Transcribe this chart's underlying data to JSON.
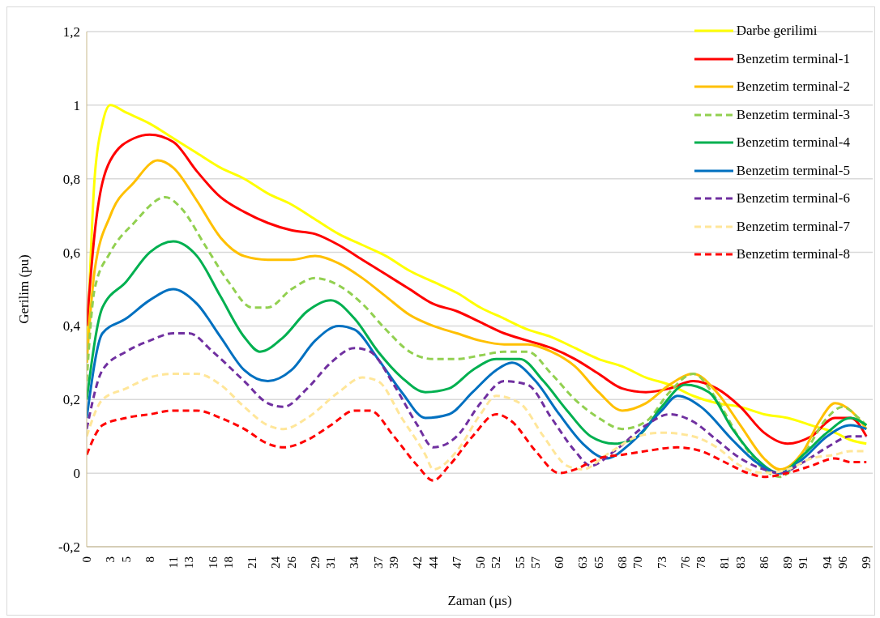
{
  "chart_data": {
    "type": "line",
    "xlabel": "Zaman (µs)",
    "ylabel": "Gerilim (pu)",
    "legend": "top right",
    "grid": "y",
    "xlim": [
      0,
      99.8
    ],
    "ylim": [
      -0.2,
      1.2
    ],
    "yticks": [
      {
        "value": -0.2,
        "label": "-0,2"
      },
      {
        "value": 0,
        "label": "0"
      },
      {
        "value": 0.2,
        "label": "0,2"
      },
      {
        "value": 0.4,
        "label": "0,4"
      },
      {
        "value": 0.6,
        "label": "0,6"
      },
      {
        "value": 0.8,
        "label": "0,8"
      },
      {
        "value": 1,
        "label": "1"
      },
      {
        "value": 1.2,
        "label": "1,2"
      }
    ],
    "xticks": [
      0,
      3,
      5,
      8,
      11,
      13,
      16,
      18,
      21,
      24,
      26,
      29,
      31,
      34,
      37,
      39,
      42,
      44,
      47,
      50,
      52,
      55,
      57,
      60,
      63,
      65,
      68,
      70,
      73,
      76,
      78,
      81,
      83,
      86,
      89,
      91,
      94,
      96,
      99
    ],
    "series": [
      {
        "name": "Darbe gerilimi",
        "color": "#ffff00",
        "line_style": "solid",
        "x": [
          0,
          1,
          2,
          3,
          5,
          8,
          11,
          14,
          17,
          20,
          23,
          26,
          29,
          32,
          35,
          38,
          41,
          44,
          47,
          50,
          53,
          56,
          59,
          62,
          65,
          68,
          71,
          74,
          77,
          80,
          83,
          86,
          89,
          92,
          95,
          97,
          99
        ],
        "values": [
          0.3,
          0.8,
          0.95,
          1.0,
          0.98,
          0.95,
          0.91,
          0.87,
          0.83,
          0.8,
          0.76,
          0.73,
          0.69,
          0.65,
          0.62,
          0.59,
          0.55,
          0.52,
          0.49,
          0.45,
          0.42,
          0.39,
          0.37,
          0.34,
          0.31,
          0.29,
          0.26,
          0.24,
          0.21,
          0.19,
          0.18,
          0.16,
          0.15,
          0.13,
          0.11,
          0.09,
          0.08
        ]
      },
      {
        "name": "Benzetim terminal-1",
        "color": "#ff0000",
        "line_style": "solid",
        "x": [
          0,
          1,
          3,
          6,
          8,
          11,
          14,
          17,
          20,
          23,
          26,
          29,
          32,
          35,
          38,
          41,
          44,
          47,
          50,
          53,
          56,
          59,
          62,
          65,
          68,
          71,
          74,
          77,
          80,
          83,
          86,
          89,
          92,
          95,
          97,
          99
        ],
        "values": [
          0.4,
          0.65,
          0.85,
          0.91,
          0.92,
          0.9,
          0.82,
          0.75,
          0.71,
          0.68,
          0.66,
          0.65,
          0.62,
          0.58,
          0.54,
          0.5,
          0.46,
          0.44,
          0.41,
          0.38,
          0.36,
          0.34,
          0.31,
          0.27,
          0.23,
          0.22,
          0.23,
          0.25,
          0.23,
          0.18,
          0.11,
          0.08,
          0.1,
          0.15,
          0.15,
          0.1
        ]
      },
      {
        "name": "Benzetim terminal-2",
        "color": "#ffc000",
        "line_style": "solid",
        "x": [
          0,
          1,
          3,
          6,
          9,
          11,
          14,
          17,
          20,
          23,
          26,
          29,
          32,
          35,
          38,
          41,
          44,
          47,
          50,
          53,
          56,
          59,
          62,
          65,
          68,
          71,
          74,
          77,
          80,
          83,
          86,
          88,
          91,
          93,
          95,
          97,
          99
        ],
        "values": [
          0.3,
          0.55,
          0.7,
          0.79,
          0.85,
          0.83,
          0.74,
          0.64,
          0.59,
          0.58,
          0.58,
          0.59,
          0.57,
          0.53,
          0.48,
          0.43,
          0.4,
          0.38,
          0.36,
          0.35,
          0.35,
          0.33,
          0.29,
          0.22,
          0.17,
          0.19,
          0.24,
          0.27,
          0.22,
          0.13,
          0.04,
          0.01,
          0.06,
          0.14,
          0.19,
          0.17,
          0.12
        ]
      },
      {
        "name": "Benzetim terminal-3",
        "color": "#92d050",
        "line_style": "dashed",
        "x": [
          0,
          1,
          3,
          6,
          10,
          12,
          15,
          18,
          21,
          23,
          26,
          29,
          32,
          35,
          38,
          41,
          44,
          47,
          50,
          53,
          56,
          59,
          62,
          65,
          68,
          71,
          74,
          77,
          80,
          83,
          86,
          88,
          91,
          94,
          96,
          98,
          99
        ],
        "values": [
          0.25,
          0.5,
          0.6,
          0.68,
          0.75,
          0.72,
          0.62,
          0.52,
          0.45,
          0.45,
          0.5,
          0.53,
          0.51,
          0.46,
          0.39,
          0.33,
          0.31,
          0.31,
          0.32,
          0.33,
          0.33,
          0.27,
          0.2,
          0.15,
          0.12,
          0.14,
          0.22,
          0.27,
          0.2,
          0.09,
          0.01,
          -0.01,
          0.05,
          0.15,
          0.18,
          0.15,
          0.13
        ]
      },
      {
        "name": "Benzetim terminal-4",
        "color": "#00b050",
        "line_style": "solid",
        "x": [
          0,
          2,
          5,
          8,
          11,
          14,
          17,
          20,
          22,
          25,
          28,
          31,
          34,
          37,
          40,
          43,
          46,
          49,
          52,
          55,
          58,
          61,
          64,
          67,
          70,
          73,
          76,
          79,
          82,
          85,
          88,
          91,
          94,
          97,
          99
        ],
        "values": [
          0.2,
          0.45,
          0.52,
          0.6,
          0.63,
          0.59,
          0.48,
          0.37,
          0.33,
          0.37,
          0.44,
          0.47,
          0.42,
          0.33,
          0.26,
          0.22,
          0.23,
          0.28,
          0.31,
          0.31,
          0.25,
          0.17,
          0.1,
          0.08,
          0.1,
          0.18,
          0.24,
          0.22,
          0.12,
          0.04,
          0.0,
          0.05,
          0.11,
          0.15,
          0.13
        ]
      },
      {
        "name": "Benzetim terminal-5",
        "color": "#0070c0",
        "line_style": "solid",
        "x": [
          0,
          2,
          5,
          8,
          11,
          14,
          17,
          20,
          23,
          26,
          29,
          32,
          34,
          37,
          40,
          43,
          46,
          49,
          52,
          54,
          57,
          60,
          63,
          66,
          69,
          73,
          75,
          78,
          82,
          85,
          88,
          91,
          94,
          97,
          99
        ],
        "values": [
          0.15,
          0.38,
          0.42,
          0.47,
          0.5,
          0.46,
          0.37,
          0.28,
          0.25,
          0.28,
          0.36,
          0.4,
          0.39,
          0.31,
          0.22,
          0.15,
          0.16,
          0.22,
          0.28,
          0.3,
          0.25,
          0.16,
          0.08,
          0.04,
          0.08,
          0.17,
          0.21,
          0.18,
          0.09,
          0.03,
          0.0,
          0.04,
          0.1,
          0.13,
          0.12
        ]
      },
      {
        "name": "Benzetim terminal-6",
        "color": "#7030a0",
        "line_style": "dashed",
        "x": [
          0,
          2,
          5,
          8,
          11,
          13,
          16,
          20,
          23,
          25,
          28,
          31,
          34,
          36,
          39,
          42,
          44,
          47,
          50,
          53,
          56,
          59,
          62,
          64,
          67,
          71,
          74,
          77,
          80,
          83,
          86,
          88,
          91,
          94,
          97,
          99
        ],
        "values": [
          0.12,
          0.28,
          0.33,
          0.36,
          0.38,
          0.38,
          0.33,
          0.25,
          0.19,
          0.18,
          0.23,
          0.3,
          0.34,
          0.33,
          0.24,
          0.13,
          0.07,
          0.1,
          0.19,
          0.25,
          0.24,
          0.15,
          0.06,
          0.02,
          0.06,
          0.13,
          0.16,
          0.14,
          0.09,
          0.04,
          0.01,
          0.0,
          0.03,
          0.07,
          0.1,
          0.1
        ]
      },
      {
        "name": "Benzetim terminal-7",
        "color": "#ffe699",
        "line_style": "dashed",
        "x": [
          0,
          2,
          5,
          8,
          11,
          14,
          17,
          20,
          23,
          25,
          28,
          32,
          35,
          37,
          40,
          43,
          44,
          47,
          50,
          52,
          55,
          58,
          61,
          63,
          66,
          70,
          73,
          77,
          80,
          83,
          86,
          89,
          92,
          95,
          97,
          99
        ],
        "values": [
          0.1,
          0.2,
          0.23,
          0.26,
          0.27,
          0.27,
          0.24,
          0.18,
          0.13,
          0.12,
          0.15,
          0.22,
          0.26,
          0.25,
          0.15,
          0.05,
          0.01,
          0.06,
          0.16,
          0.21,
          0.19,
          0.1,
          0.02,
          0.01,
          0.05,
          0.1,
          0.11,
          0.1,
          0.07,
          0.02,
          0.0,
          0.01,
          0.04,
          0.05,
          0.06,
          0.06
        ]
      },
      {
        "name": "Benzetim terminal-8",
        "color": "#ff0000",
        "line_style": "dashed",
        "x": [
          0,
          2,
          5,
          8,
          11,
          14,
          17,
          20,
          23,
          25,
          28,
          31,
          34,
          36,
          39,
          42,
          44,
          46,
          49,
          52,
          54,
          57,
          60,
          62,
          65,
          68,
          71,
          75,
          78,
          81,
          84,
          86,
          89,
          92,
          95,
          97,
          99
        ],
        "values": [
          0.05,
          0.13,
          0.15,
          0.16,
          0.17,
          0.17,
          0.15,
          0.12,
          0.08,
          0.07,
          0.09,
          0.13,
          0.17,
          0.17,
          0.1,
          0.02,
          -0.02,
          0.02,
          0.1,
          0.16,
          0.14,
          0.06,
          0.0,
          0.01,
          0.04,
          0.05,
          0.06,
          0.07,
          0.06,
          0.03,
          0.0,
          -0.01,
          0.0,
          0.02,
          0.04,
          0.03,
          0.03
        ]
      }
    ]
  }
}
